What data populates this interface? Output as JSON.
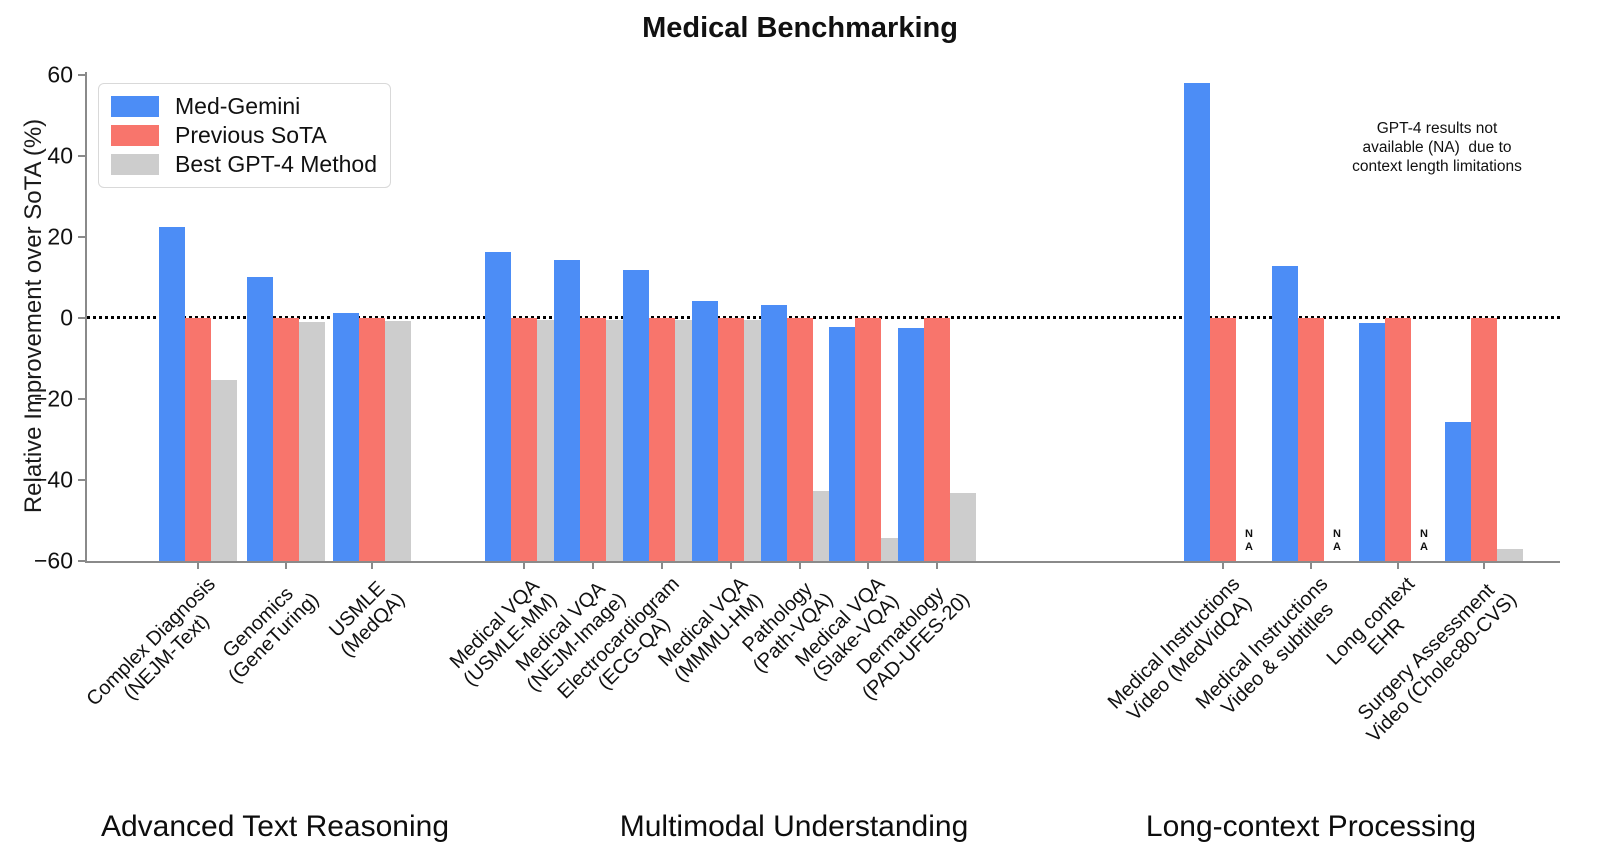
{
  "title": "Medical Benchmarking",
  "y_axis": {
    "label": "Relative Improvement over SoTA (%)",
    "ticks": [
      60,
      40,
      20,
      0,
      -20,
      -40,
      -60
    ],
    "tick_labels": [
      "60",
      "40",
      "20",
      "0",
      "−20",
      "−40",
      "−60"
    ],
    "min": -60,
    "max": 60.7
  },
  "legend": {
    "items": [
      {
        "label": "Med-Gemini",
        "color": "#4C8DF6"
      },
      {
        "label": "Previous SoTA",
        "color": "#F8756C"
      },
      {
        "label": "Best GPT-4 Method",
        "color": "#CDCDCD"
      }
    ]
  },
  "annotation": {
    "text": "GPT-4 results not\navailable (NA)  due to\ncontext length limitations"
  },
  "na_marker": "NA",
  "groups": [
    {
      "name": "Advanced Text Reasoning"
    },
    {
      "name": "Multimodal Understanding"
    },
    {
      "name": "Long-context Processing"
    }
  ],
  "chart_data": {
    "type": "bar",
    "title": "Medical Benchmarking",
    "ylabel": "Relative Improvement over SoTA (%)",
    "ylim": [
      -60,
      60.7
    ],
    "zero_baseline": "dotted",
    "legend_position": "upper left",
    "series_keys": [
      "med_gemini",
      "previous_sota",
      "gpt4"
    ],
    "series_names": [
      "Med-Gemini",
      "Previous SoTA",
      "Best GPT-4 Method"
    ],
    "na_note": "NA = GPT-4 results not available due to context length limitations",
    "categories": [
      {
        "label": "Complex Diagnosis\n(NEJM-Text)",
        "group": 0,
        "med_gemini": 22.5,
        "previous_sota": 0,
        "gpt4": -15.3
      },
      {
        "label": "Genomics\n(GeneTuring)",
        "group": 0,
        "med_gemini": 10.0,
        "previous_sota": 0,
        "gpt4": -1.0
      },
      {
        "label": "USMLE\n(MedQA)",
        "group": 0,
        "med_gemini": 1.2,
        "previous_sota": 0,
        "gpt4": -0.8
      },
      {
        "label": "Medical VQA\n(USMLE-MM)",
        "group": 1,
        "med_gemini": 16.3,
        "previous_sota": 0,
        "gpt4": -0.6
      },
      {
        "label": "Medical VQA\n(NEJM-Image)",
        "group": 1,
        "med_gemini": 14.3,
        "previous_sota": 0,
        "gpt4": -0.6
      },
      {
        "label": "Electrocardiogram\n(ECG-QA)",
        "group": 1,
        "med_gemini": 11.8,
        "previous_sota": 0,
        "gpt4": -0.6
      },
      {
        "label": "Medical VQA\n(MMMU-HM)",
        "group": 1,
        "med_gemini": 4.1,
        "previous_sota": 0,
        "gpt4": -0.6
      },
      {
        "label": "Pathology\n(Path-VQA)",
        "group": 1,
        "med_gemini": 3.2,
        "previous_sota": 0,
        "gpt4": -42.6
      },
      {
        "label": "Medical VQA\n(Slake-VQA)",
        "group": 1,
        "med_gemini": -2.2,
        "previous_sota": 0,
        "gpt4": -54.3
      },
      {
        "label": "Dermatology\n(PAD-UFES-20)",
        "group": 1,
        "med_gemini": -2.5,
        "previous_sota": 0,
        "gpt4": -43.2
      },
      {
        "label": "Medical Instructions\nVideo (MedVidQA)",
        "group": 2,
        "med_gemini": 58.0,
        "previous_sota": 0,
        "gpt4": null
      },
      {
        "label": "Medical Instructions\nVideo & subtitles",
        "group": 2,
        "med_gemini": 12.8,
        "previous_sota": 0,
        "gpt4": null
      },
      {
        "label": "Long context\nEHR",
        "group": 2,
        "med_gemini": -1.3,
        "previous_sota": 0,
        "gpt4": null
      },
      {
        "label": "Surgery Assessment\nVideo (Cholec80-CVS)",
        "group": 2,
        "med_gemini": -25.7,
        "previous_sota": 0,
        "gpt4": -57.0
      }
    ]
  }
}
